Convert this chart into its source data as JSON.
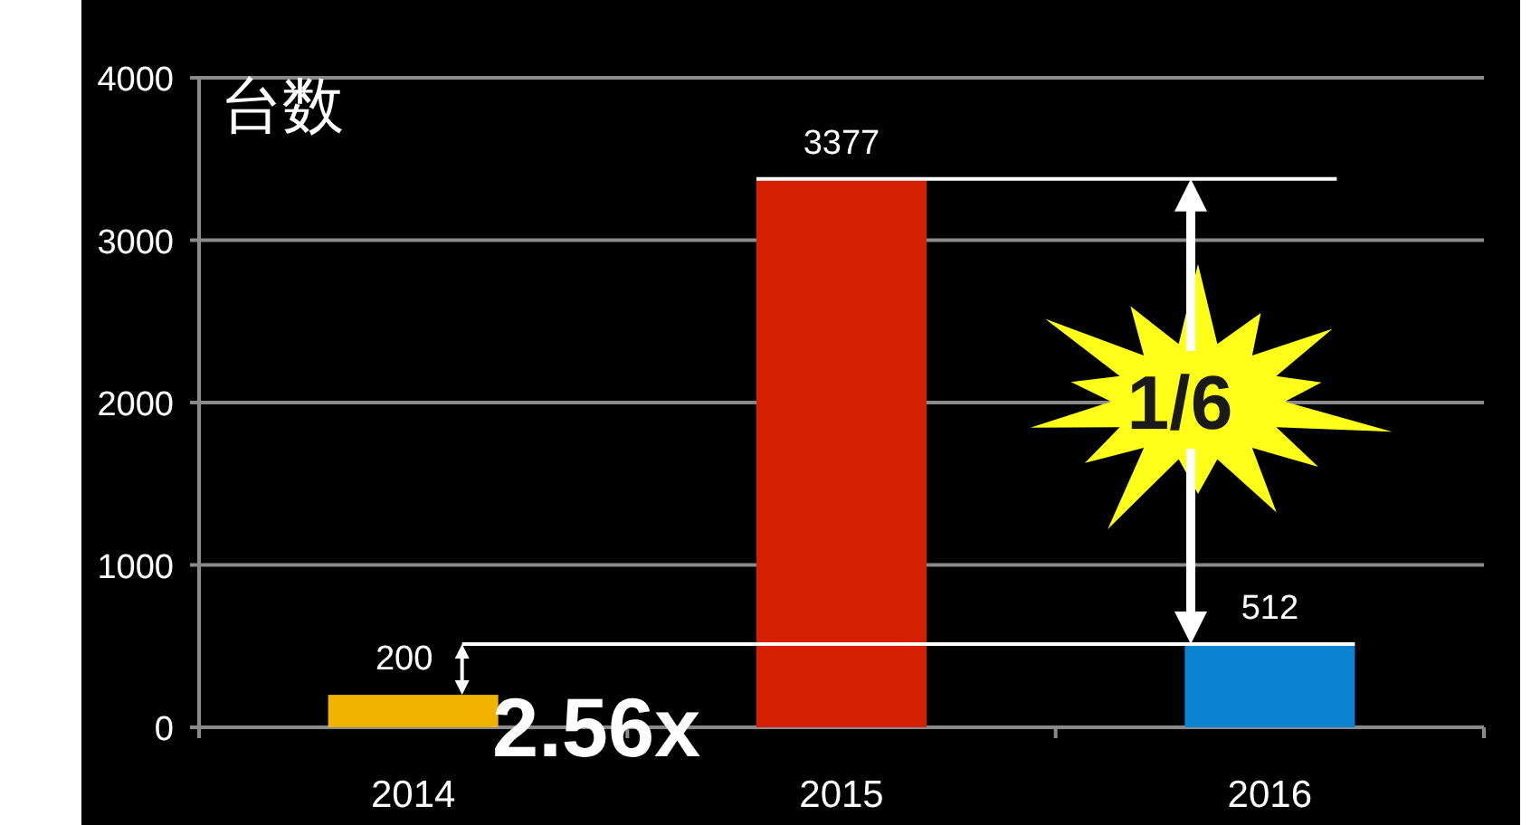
{
  "chart_data": {
    "type": "bar",
    "ylabel": "台数",
    "categories": [
      "2014",
      "2015",
      "2016"
    ],
    "values": [
      200,
      3377,
      512
    ],
    "colors": [
      "#f0b400",
      "#d42000",
      "#0a84d0"
    ],
    "ylim": [
      0,
      4000
    ],
    "yticks": [
      0,
      1000,
      2000,
      3000,
      4000
    ],
    "grid": "y",
    "data_labels": true,
    "ref_lines": [
      {
        "axis": "y",
        "value": 3377,
        "color": "#ffffff"
      },
      {
        "axis": "y",
        "value": 512,
        "color": "#ffffff"
      }
    ],
    "annotations": [
      {
        "text": "2.56x",
        "x": "2014",
        "y": 200
      },
      "1/6"
    ]
  }
}
